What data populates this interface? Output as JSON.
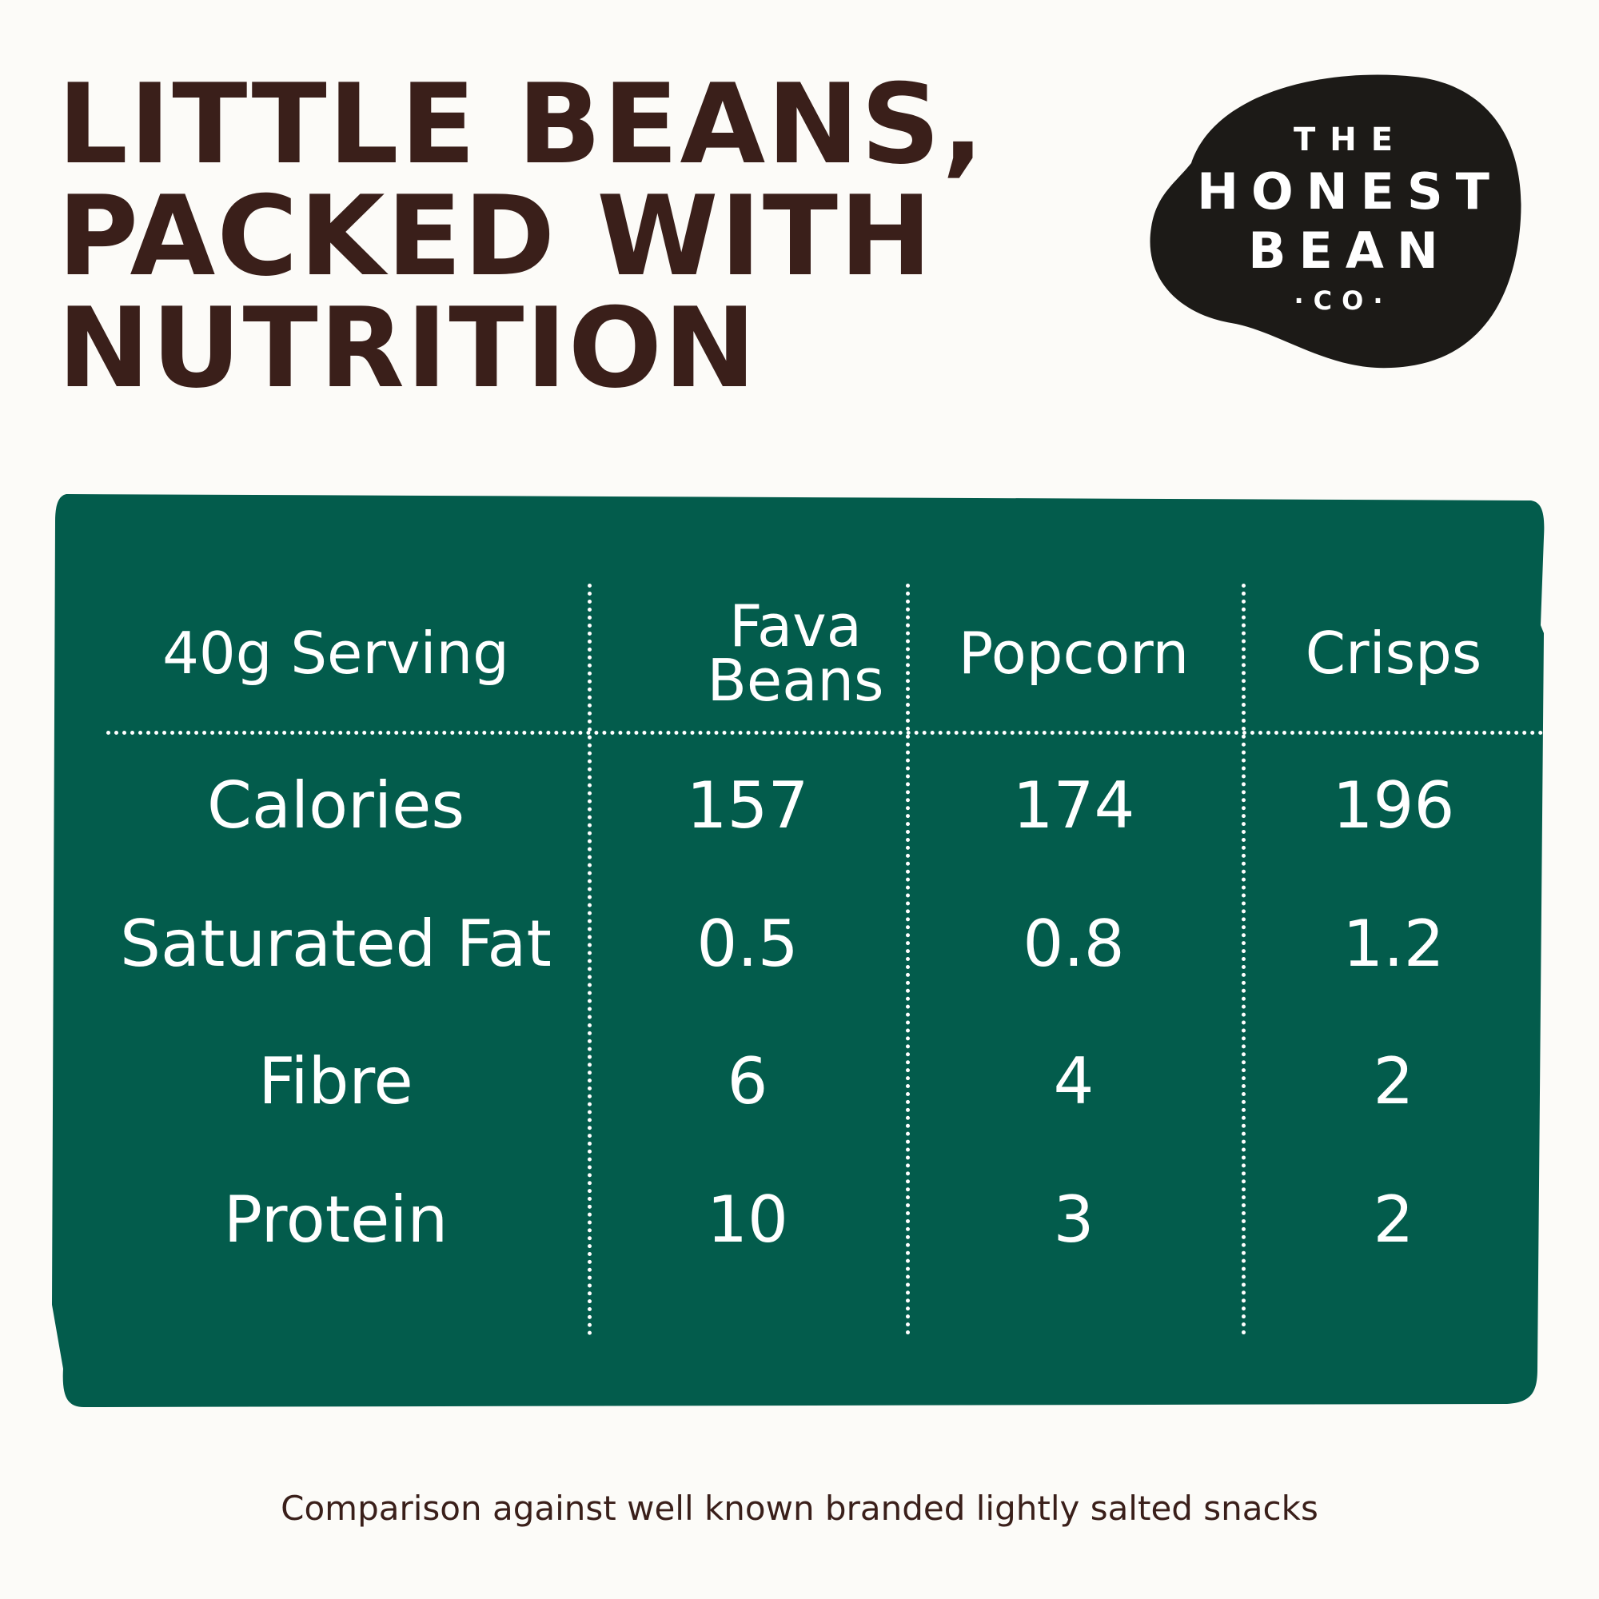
{
  "headline": {
    "lines": [
      "LITTLE BEANS,",
      "PACKED WITH",
      "NUTRITION"
    ]
  },
  "logo": {
    "lines": [
      "THE",
      "HONEST",
      "BEAN",
      "·CO·"
    ]
  },
  "table": {
    "header": [
      "40g Serving",
      "Fava Beans",
      "Popcorn",
      "Crisps"
    ],
    "rows": [
      [
        "Calories",
        "157",
        "174",
        "196"
      ],
      [
        "Saturated Fat",
        "0.5",
        "0.8",
        "1.2"
      ],
      [
        "Fibre",
        "6",
        "4",
        "2"
      ],
      [
        "Protein",
        "10",
        "3",
        "2"
      ]
    ]
  },
  "footnote": "Comparison against well known branded lightly salted snacks",
  "colors": {
    "background": "#fcfbf8",
    "headline": "#3a1f1a",
    "panel": "#035c4c",
    "logo": "#1c1a17",
    "text_on_panel": "#ffffff"
  }
}
